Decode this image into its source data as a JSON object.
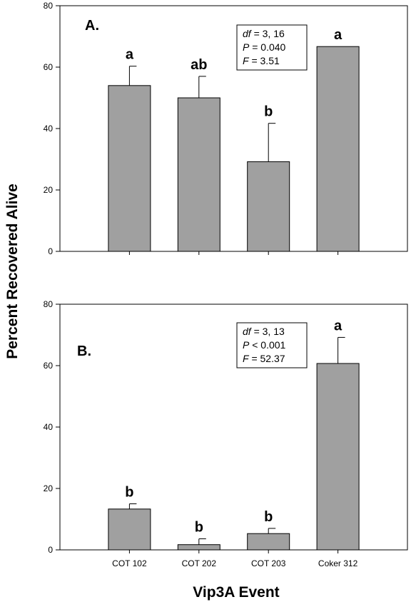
{
  "ylabel": "Percent Recovered Alive",
  "xlabel": "Vip3A Event",
  "chart_data": [
    {
      "type": "bar",
      "panel": "A.",
      "categories": [
        "COT 102",
        "COT 202",
        "COT 203",
        "Coker 312"
      ],
      "show_category_labels": false,
      "values": [
        54,
        50,
        29.2,
        66.7
      ],
      "errors": [
        6.3,
        7,
        12.5,
        0
      ],
      "significance": [
        "a",
        "ab",
        "b",
        "a"
      ],
      "ylim": [
        0,
        80
      ],
      "yticks": [
        0,
        20,
        40,
        60,
        80
      ],
      "stats": [
        {
          "italic": "df",
          "rest": " =  3, 16"
        },
        {
          "italic": "P",
          "rest": " = 0.040"
        },
        {
          "italic": "F",
          "rest": " = 3.51"
        }
      ],
      "bar_color": "#a0a0a0"
    },
    {
      "type": "bar",
      "panel": "B.",
      "categories": [
        "COT 102",
        "COT 202",
        "COT 203",
        "Coker 312"
      ],
      "show_category_labels": true,
      "values": [
        13.3,
        1.7,
        5.3,
        60.7
      ],
      "errors": [
        1.7,
        1.9,
        1.7,
        8.5
      ],
      "significance": [
        "b",
        "b",
        "b",
        "a"
      ],
      "ylim": [
        0,
        80
      ],
      "yticks": [
        0,
        20,
        40,
        60,
        80
      ],
      "stats": [
        {
          "italic": "df",
          "rest": " =  3, 13"
        },
        {
          "italic": "P",
          "rest": " < 0.001"
        },
        {
          "italic": "F",
          "rest": " = 52.37"
        }
      ],
      "bar_color": "#a0a0a0"
    }
  ]
}
